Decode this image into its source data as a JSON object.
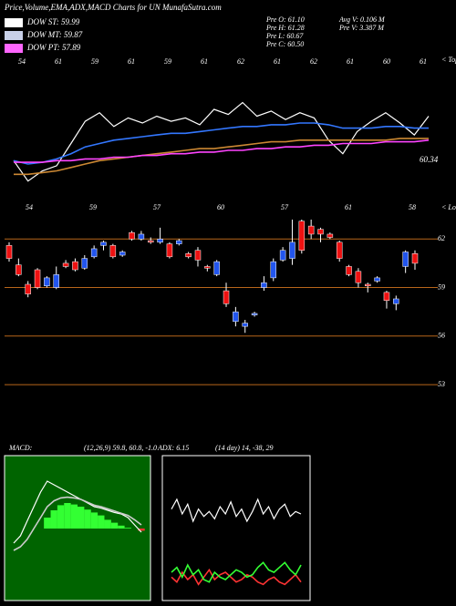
{
  "header": {
    "title": "Price,Volume,EMA,ADX,MACD Charts for UN  MunafaSutra.com",
    "legend": [
      {
        "label": "DOW ST: 59.99",
        "color": "#ffffff"
      },
      {
        "label": "DOW MT: 59.87",
        "color": "#c8d0e8"
      },
      {
        "label": "DOW PT: 57.89",
        "color": "#ff66ff"
      }
    ],
    "info": [
      "Pre  O: 61.10",
      "Pre  H: 61.28",
      "Pre  L: 60.67",
      "Pre  C: 60.50",
      "Avg  V: 0.106  M",
      "Pre  V: 3.387 M"
    ]
  },
  "chart_data": [
    {
      "type": "line",
      "label": "< Tops",
      "annotation": "60.34",
      "top_labels": [
        "54",
        "61",
        "59",
        "61",
        "59",
        "61",
        "62",
        "61",
        "62",
        "61",
        "60",
        "61"
      ],
      "ylim": [
        56,
        64
      ],
      "series": [
        {
          "color": "#ffffff",
          "values": [
            57.8,
            56.6,
            57.2,
            57.5,
            58.8,
            60.1,
            60.6,
            59.8,
            60.3,
            60.0,
            60.4,
            60.1,
            60.3,
            59.9,
            60.8,
            60.5,
            61.2,
            60.4,
            60.7,
            60.2,
            60.6,
            60.3,
            59.0,
            58.2,
            59.5,
            60.1,
            60.6,
            60.0,
            59.3,
            60.4
          ]
        },
        {
          "color": "#3377ff",
          "values": [
            57.8,
            57.6,
            57.7,
            57.9,
            58.2,
            58.6,
            58.8,
            59.0,
            59.1,
            59.2,
            59.3,
            59.4,
            59.4,
            59.5,
            59.6,
            59.7,
            59.8,
            59.8,
            59.9,
            59.9,
            60.0,
            60.0,
            59.9,
            59.7,
            59.7,
            59.7,
            59.8,
            59.8,
            59.7,
            59.7
          ]
        },
        {
          "color": "#cc8833",
          "values": [
            57.0,
            57.0,
            57.1,
            57.2,
            57.4,
            57.6,
            57.8,
            57.9,
            58.0,
            58.1,
            58.2,
            58.3,
            58.4,
            58.5,
            58.5,
            58.6,
            58.7,
            58.8,
            58.9,
            58.9,
            59.0,
            59.0,
            59.0,
            59.0,
            59.0,
            59.0,
            59.0,
            59.1,
            59.1,
            59.1
          ]
        },
        {
          "color": "#ff44ff",
          "values": [
            57.7,
            57.7,
            57.7,
            57.8,
            57.8,
            57.9,
            57.9,
            58.0,
            58.0,
            58.1,
            58.1,
            58.2,
            58.2,
            58.3,
            58.3,
            58.4,
            58.4,
            58.5,
            58.5,
            58.6,
            58.6,
            58.7,
            58.7,
            58.8,
            58.8,
            58.8,
            58.9,
            58.9,
            58.9,
            59.0
          ]
        }
      ]
    },
    {
      "type": "candlestick",
      "label": "< Lows",
      "top_labels": [
        "54",
        "59",
        "57",
        "60",
        "57",
        "61",
        "58"
      ],
      "ylim": [
        50.3,
        64.1
      ],
      "yticks": [
        53,
        56,
        59,
        62
      ],
      "grid": true,
      "grid_color": "#b8661a",
      "up_color": "#2255ee",
      "down_color": "#ee1111",
      "open": [
        61.6,
        60.4,
        59.2,
        60.1,
        59.1,
        59.0,
        60.5,
        60.6,
        60.2,
        60.9,
        61.6,
        61.6,
        61.0,
        62.4,
        62.0,
        61.9,
        61.8,
        61.7,
        61.7,
        61.1,
        61.3,
        60.3,
        59.8,
        58.8,
        56.9,
        56.6,
        57.3,
        59.0,
        59.6,
        60.7,
        60.8,
        63.1,
        62.8,
        62.6,
        62.3,
        61.8,
        60.3,
        60.0,
        59.2,
        59.4,
        58.7,
        58.0,
        60.3,
        61.1
      ],
      "high": [
        61.8,
        60.8,
        59.4,
        60.2,
        59.7,
        60.3,
        60.7,
        60.8,
        61.0,
        61.6,
        61.9,
        61.7,
        61.3,
        62.5,
        62.5,
        62.1,
        62.7,
        61.8,
        62.0,
        61.2,
        61.5,
        60.4,
        60.7,
        59.3,
        57.8,
        57.0,
        57.5,
        59.7,
        60.8,
        61.5,
        63.2,
        63.2,
        63.2,
        62.7,
        62.4,
        61.9,
        60.4,
        60.2,
        59.3,
        59.7,
        58.8,
        58.5,
        61.3,
        61.3
      ],
      "low": [
        60.6,
        59.7,
        58.4,
        58.9,
        59.0,
        58.9,
        60.2,
        60.0,
        60.1,
        60.8,
        61.3,
        60.8,
        60.9,
        61.9,
        61.9,
        61.7,
        61.7,
        60.8,
        61.6,
        60.8,
        60.3,
        60.0,
        59.7,
        57.8,
        56.6,
        56.2,
        57.2,
        58.8,
        59.4,
        60.6,
        60.4,
        61.1,
        62.0,
        61.8,
        62.0,
        60.6,
        59.7,
        59.0,
        58.7,
        59.3,
        57.7,
        57.6,
        59.9,
        60.1
      ],
      "close": [
        60.8,
        59.8,
        58.6,
        59.0,
        59.6,
        59.8,
        60.3,
        60.1,
        60.8,
        61.4,
        61.8,
        60.9,
        61.2,
        62.0,
        62.3,
        61.8,
        62.0,
        60.9,
        61.9,
        60.9,
        60.7,
        60.2,
        60.6,
        58.0,
        57.5,
        56.8,
        57.4,
        59.3,
        60.6,
        61.3,
        61.8,
        61.3,
        62.3,
        62.3,
        62.1,
        60.8,
        59.8,
        59.3,
        59.1,
        59.6,
        58.2,
        58.3,
        61.2,
        60.5
      ]
    },
    {
      "type": "macd",
      "title": "MACD:",
      "params": "(12,26,9) 59.8, 60.8, -1.0",
      "ylim": [
        -10,
        10
      ],
      "background": "#006400",
      "bars": {
        "up_color": "#33ff33",
        "down_color": "#ff3333",
        "values": [
          0,
          0,
          0,
          0,
          0,
          1.5,
          2.5,
          3.2,
          3.5,
          3.3,
          3,
          2.6,
          2.2,
          1.8,
          1.2,
          0.8,
          0.4,
          0.1,
          0,
          -0.3
        ]
      },
      "series": [
        {
          "color": "#ffffff",
          "values": [
            -2,
            -1,
            1,
            3,
            5,
            6.5,
            6,
            5.5,
            5,
            4.5,
            4,
            3.5,
            3,
            2.8,
            2.5,
            2.2,
            2,
            1.5,
            0.5,
            -0.5
          ]
        },
        {
          "color": "#cccccc",
          "values": [
            -3,
            -2.5,
            -1.5,
            0,
            1.5,
            3,
            3.8,
            4.2,
            4.3,
            4.2,
            4,
            3.6,
            3.2,
            3,
            2.7,
            2.4,
            2.1,
            1.8,
            1.2,
            0.5
          ]
        }
      ]
    },
    {
      "type": "adx",
      "title": "ADX: 6.15",
      "params": "(14 day) 14, -38, 29",
      "ylim": [
        0,
        60
      ],
      "series": [
        {
          "color": "#ffffff",
          "values": [
            38,
            42,
            36,
            40,
            33,
            38,
            35,
            37,
            34,
            39,
            36,
            41,
            35,
            38,
            33,
            37,
            42,
            36,
            39,
            34,
            38,
            40,
            35,
            37,
            36
          ]
        },
        {
          "color": "#ff3333",
          "values": [
            10,
            8,
            12,
            9,
            11,
            7,
            10,
            13,
            9,
            11,
            12,
            10,
            8,
            9,
            11,
            10,
            8,
            7,
            9,
            10,
            8,
            7,
            9,
            11,
            8
          ]
        },
        {
          "color": "#33ff33",
          "values": [
            12,
            14,
            10,
            15,
            11,
            13,
            9,
            8,
            12,
            10,
            9,
            11,
            13,
            12,
            10,
            11,
            14,
            16,
            13,
            12,
            14,
            16,
            13,
            11,
            15
          ]
        }
      ]
    }
  ]
}
